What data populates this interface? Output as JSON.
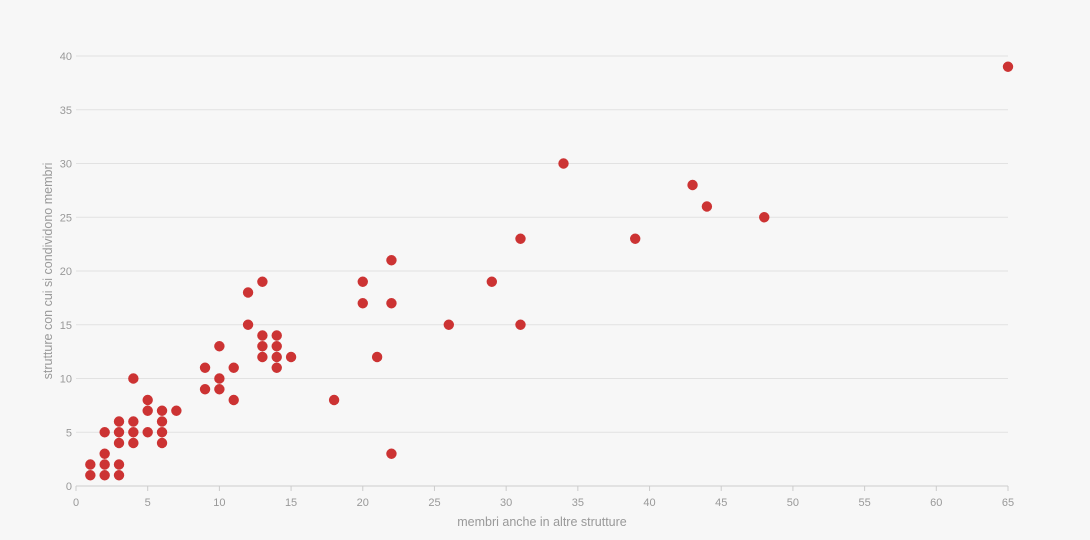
{
  "chart_data": {
    "type": "scatter",
    "title": "",
    "xlabel": "membri anche in altre strutture",
    "ylabel": "strutture con cui si condividono membri",
    "xlim": [
      0,
      65
    ],
    "ylim": [
      0,
      40
    ],
    "x_ticks": [
      "0",
      "5",
      "10",
      "15",
      "20",
      "25",
      "30",
      "35",
      "40",
      "45",
      "50",
      "55",
      "60",
      "65"
    ],
    "y_ticks": [
      "0",
      "5",
      "10",
      "15",
      "20",
      "25",
      "30",
      "35",
      "40"
    ],
    "grid": true,
    "marker_color": "#cc3333",
    "points": [
      [
        1,
        1
      ],
      [
        1,
        2
      ],
      [
        2,
        1
      ],
      [
        2,
        2
      ],
      [
        2,
        3
      ],
      [
        2,
        5
      ],
      [
        3,
        1
      ],
      [
        3,
        2
      ],
      [
        3,
        4
      ],
      [
        3,
        5
      ],
      [
        3,
        6
      ],
      [
        4,
        4
      ],
      [
        4,
        5
      ],
      [
        4,
        6
      ],
      [
        4,
        10
      ],
      [
        5,
        5
      ],
      [
        5,
        7
      ],
      [
        5,
        8
      ],
      [
        6,
        4
      ],
      [
        6,
        5
      ],
      [
        6,
        6
      ],
      [
        6,
        7
      ],
      [
        7,
        7
      ],
      [
        9,
        9
      ],
      [
        9,
        11
      ],
      [
        10,
        9
      ],
      [
        10,
        10
      ],
      [
        10,
        13
      ],
      [
        11,
        8
      ],
      [
        11,
        11
      ],
      [
        12,
        15
      ],
      [
        12,
        18
      ],
      [
        13,
        12
      ],
      [
        13,
        13
      ],
      [
        13,
        14
      ],
      [
        13,
        19
      ],
      [
        14,
        11
      ],
      [
        14,
        12
      ],
      [
        14,
        13
      ],
      [
        14,
        14
      ],
      [
        15,
        12
      ],
      [
        18,
        8
      ],
      [
        20,
        17
      ],
      [
        20,
        19
      ],
      [
        21,
        12
      ],
      [
        22,
        3
      ],
      [
        22,
        17
      ],
      [
        22,
        21
      ],
      [
        26,
        15
      ],
      [
        29,
        19
      ],
      [
        31,
        15
      ],
      [
        31,
        23
      ],
      [
        34,
        30
      ],
      [
        39,
        23
      ],
      [
        43,
        28
      ],
      [
        44,
        26
      ],
      [
        48,
        25
      ],
      [
        65,
        39
      ]
    ]
  }
}
